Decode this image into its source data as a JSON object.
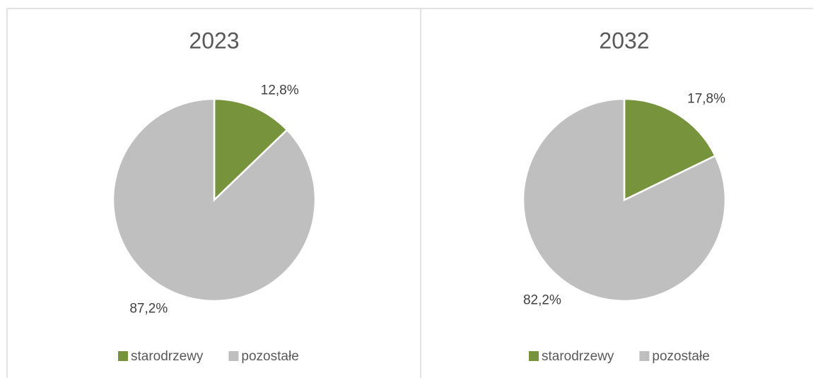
{
  "chart_data": [
    {
      "type": "pie",
      "title": "2023",
      "categories": [
        "starodrzewy",
        "pozostałe"
      ],
      "values": [
        12.8,
        87.2
      ],
      "value_labels": [
        "12,8%",
        "87,2%"
      ],
      "colors": [
        "#77933c",
        "#bfbfbf"
      ]
    },
    {
      "type": "pie",
      "title": "2032",
      "categories": [
        "starodrzewy",
        "pozostałe"
      ],
      "values": [
        17.8,
        82.2
      ],
      "value_labels": [
        "17,8%",
        "82,2%"
      ],
      "colors": [
        "#77933c",
        "#bfbfbf"
      ]
    }
  ]
}
